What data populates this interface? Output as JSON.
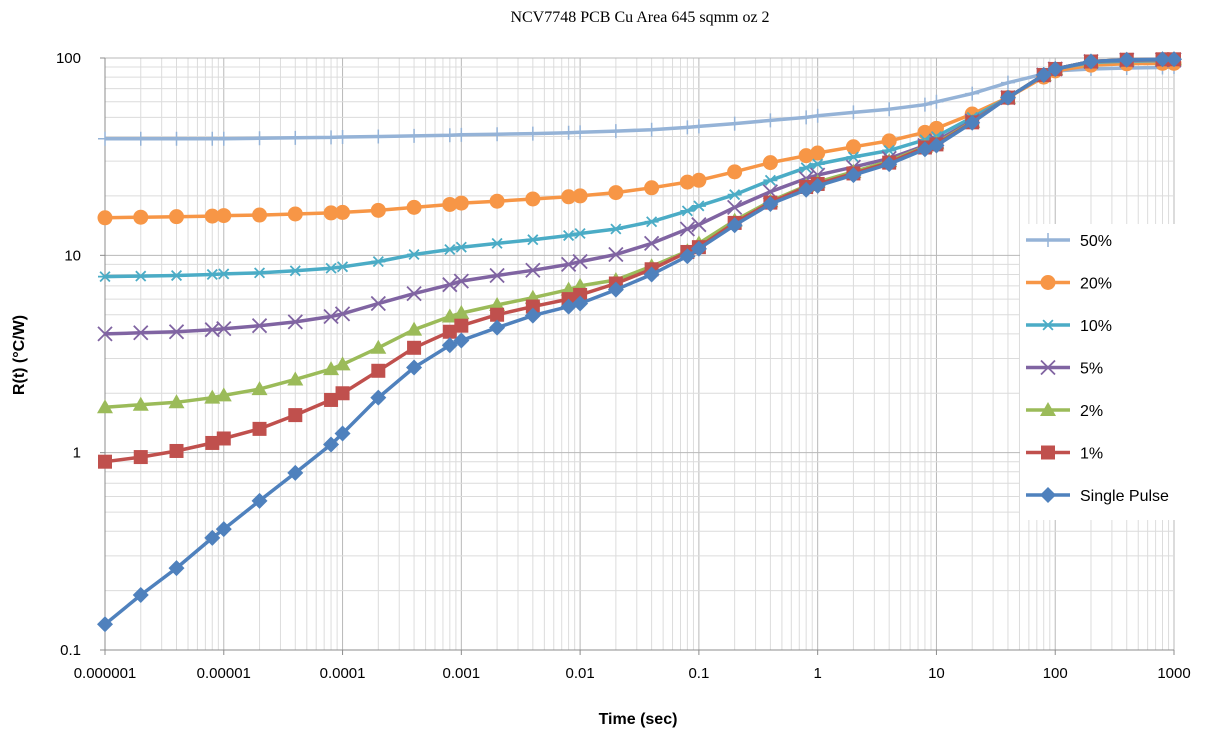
{
  "chart_data": {
    "type": "line",
    "title": "NCV7748 PCB Cu Area 645 sqmm oz 2",
    "xlabel": "Time (sec)",
    "ylabel": "R(t) (°C/W)",
    "x_scale": "log",
    "y_scale": "log",
    "xlim": [
      1e-06,
      1000
    ],
    "ylim": [
      0.1,
      100
    ],
    "grid": true,
    "legend_position": "right",
    "x_tick_labels": [
      "0.000001",
      "0.00001",
      "0.0001",
      "0.001",
      "0.01",
      "0.1",
      "1",
      "10",
      "100",
      "1000"
    ],
    "y_tick_labels": [
      "0.1",
      "1",
      "10",
      "100"
    ],
    "x": [
      1e-06,
      2e-06,
      4e-06,
      8e-06,
      1e-05,
      2e-05,
      4e-05,
      8e-05,
      0.0001,
      0.0002,
      0.0004,
      0.0008,
      0.001,
      0.002,
      0.004,
      0.008,
      0.01,
      0.02,
      0.04,
      0.08,
      0.1,
      0.2,
      0.4,
      0.8,
      1,
      2,
      4,
      8,
      10,
      20,
      40,
      80,
      100,
      200,
      400,
      800,
      1000
    ],
    "series": [
      {
        "name": "50%",
        "color": "#95B3D7",
        "marker": "plus",
        "values": [
          39,
          39,
          39,
          39,
          39,
          39.2,
          39.4,
          39.6,
          39.8,
          40,
          40.3,
          40.6,
          40.8,
          41.1,
          41.4,
          41.8,
          42,
          42.6,
          43.3,
          44.5,
          45,
          46.5,
          48.3,
          50,
          51,
          53,
          55,
          58,
          60,
          66,
          75,
          83,
          86,
          88,
          89,
          89.5,
          90
        ]
      },
      {
        "name": "20%",
        "color": "#F79646",
        "marker": "circle",
        "values": [
          15.5,
          15.6,
          15.7,
          15.8,
          15.9,
          16,
          16.2,
          16.4,
          16.5,
          16.9,
          17.5,
          18.1,
          18.4,
          18.8,
          19.3,
          19.8,
          20,
          20.8,
          22,
          23.5,
          24,
          26.5,
          29.5,
          32,
          33,
          35.5,
          38,
          42,
          44,
          52,
          63,
          80,
          86,
          92,
          93.5,
          94,
          94
        ]
      },
      {
        "name": "10%",
        "color": "#4BACC6",
        "marker": "star",
        "values": [
          7.8,
          7.85,
          7.9,
          8,
          8.05,
          8.15,
          8.35,
          8.6,
          8.75,
          9.3,
          10.1,
          10.7,
          11,
          11.5,
          12,
          12.6,
          12.9,
          13.6,
          14.8,
          16.8,
          17.8,
          20.3,
          24,
          27.8,
          29,
          31.5,
          34,
          38.5,
          40,
          50,
          63,
          82,
          88,
          95,
          96.5,
          97,
          97
        ]
      },
      {
        "name": "5%",
        "color": "#8064A2",
        "marker": "x",
        "values": [
          4,
          4.05,
          4.1,
          4.2,
          4.25,
          4.4,
          4.6,
          4.9,
          5.05,
          5.7,
          6.4,
          7.1,
          7.4,
          7.9,
          8.4,
          9,
          9.3,
          10.1,
          11.5,
          13.6,
          14.3,
          17.5,
          21,
          24.5,
          25.5,
          28,
          31,
          36,
          38,
          48,
          63,
          82,
          88,
          96,
          97.5,
          98,
          98
        ]
      },
      {
        "name": "2%",
        "color": "#9BBB59",
        "marker": "triangle",
        "values": [
          1.7,
          1.75,
          1.8,
          1.9,
          1.95,
          2.1,
          2.35,
          2.65,
          2.8,
          3.4,
          4.2,
          4.9,
          5.1,
          5.6,
          6.1,
          6.7,
          7,
          7.5,
          8.8,
          10.5,
          11.5,
          15,
          18.8,
          22.5,
          23.5,
          26.5,
          30,
          35.5,
          37,
          47.5,
          63,
          82,
          88,
          96,
          98,
          98.5,
          98.5
        ]
      },
      {
        "name": "1%",
        "color": "#C0504D",
        "marker": "square",
        "values": [
          0.9,
          0.95,
          1.02,
          1.12,
          1.18,
          1.32,
          1.55,
          1.85,
          2,
          2.6,
          3.4,
          4.1,
          4.4,
          5,
          5.5,
          6,
          6.3,
          7.2,
          8.5,
          10.4,
          11,
          14.6,
          18.5,
          22.2,
          23,
          26,
          29.5,
          35.2,
          36.5,
          47.2,
          63,
          82,
          88,
          96,
          98,
          98.5,
          98.5
        ]
      },
      {
        "name": "Single Pulse",
        "color": "#4F81BD",
        "marker": "diamond",
        "values": [
          0.135,
          0.19,
          0.26,
          0.37,
          0.41,
          0.57,
          0.79,
          1.1,
          1.25,
          1.9,
          2.7,
          3.5,
          3.7,
          4.3,
          4.95,
          5.5,
          5.7,
          6.7,
          8,
          9.9,
          10.8,
          14.2,
          18.2,
          21.5,
          22.5,
          25.5,
          29,
          34.5,
          36,
          47,
          63,
          82,
          88,
          96,
          98,
          98.5,
          98.5
        ]
      }
    ]
  }
}
